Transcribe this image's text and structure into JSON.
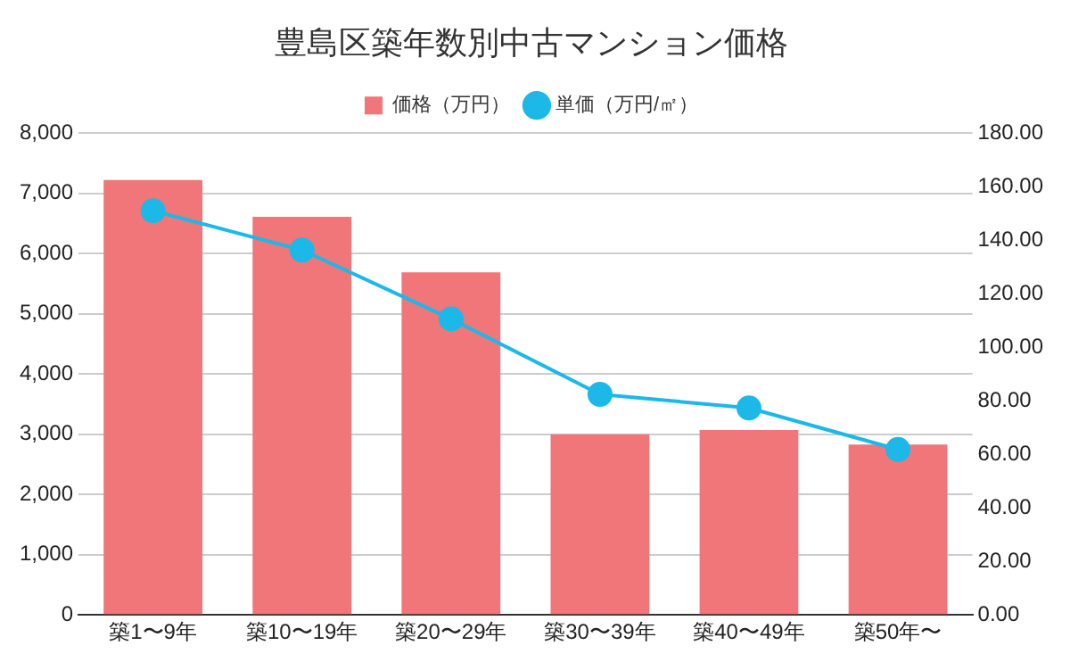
{
  "chart_data": {
    "type": "bar",
    "title": "豊島区築年数別中古マンション価格",
    "categories": [
      "築1〜9年",
      "築10〜19年",
      "築20〜29年",
      "築30〜39年",
      "築40〜49年",
      "築50年〜"
    ],
    "series": [
      {
        "name": "価格（万円）",
        "color": "#f07679",
        "values": [
          7220,
          6610,
          5690,
          3000,
          3070,
          2830
        ]
      },
      {
        "name": "単価（万円/㎡）",
        "type": "line",
        "axis": "y2",
        "color": "#1bb8e8",
        "values": [
          151,
          136.3,
          110.6,
          82.4,
          77.3,
          61.8
        ]
      }
    ],
    "ylim": [
      0,
      8000
    ],
    "yticks": [
      {
        "value": 0,
        "label": "0"
      },
      {
        "value": 1000,
        "label": "1,000"
      },
      {
        "value": 2000,
        "label": "2,000"
      },
      {
        "value": 3000,
        "label": "3,000"
      },
      {
        "value": 4000,
        "label": "4,000"
      },
      {
        "value": 5000,
        "label": "5,000"
      },
      {
        "value": 6000,
        "label": "6,000"
      },
      {
        "value": 7000,
        "label": "7,000"
      },
      {
        "value": 8000,
        "label": "8,000"
      }
    ],
    "y2lim": [
      0,
      180
    ],
    "y2ticks": [
      {
        "value": 0,
        "label": "0.00"
      },
      {
        "value": 20,
        "label": "20.00"
      },
      {
        "value": 40,
        "label": "40.00"
      },
      {
        "value": 60,
        "label": "60.00"
      },
      {
        "value": 80,
        "label": "80.00"
      },
      {
        "value": 100,
        "label": "100.00"
      },
      {
        "value": 120,
        "label": "120.00"
      },
      {
        "value": 140,
        "label": "140.00"
      },
      {
        "value": 160,
        "label": "160.00"
      },
      {
        "value": 180,
        "label": "180.00"
      }
    ],
    "grid": "y",
    "legend": "top",
    "marker": "circle"
  }
}
